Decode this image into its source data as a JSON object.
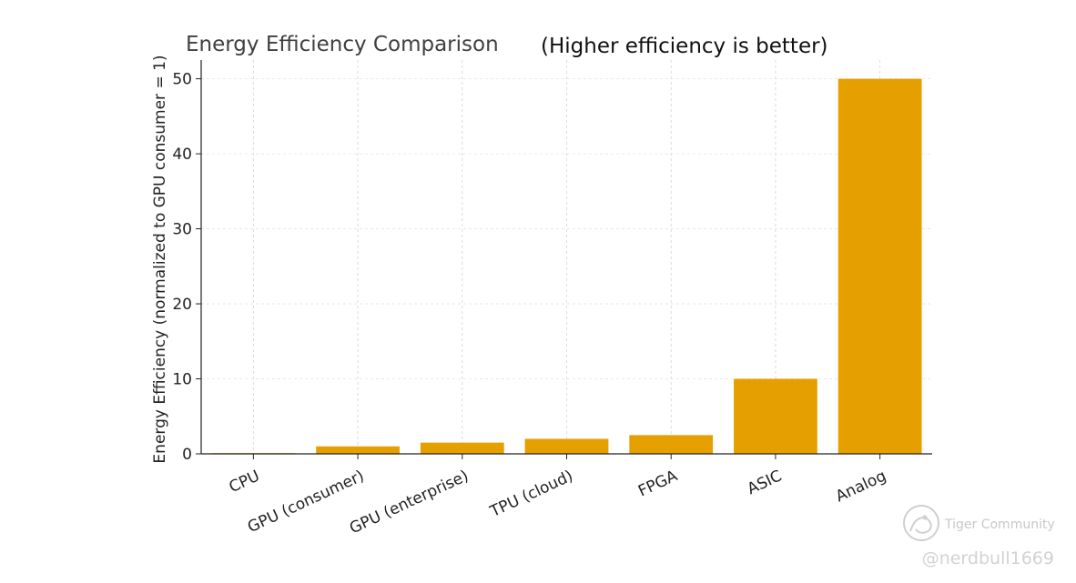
{
  "chart_data": {
    "type": "bar",
    "title": "Energy Efficiency Comparison",
    "subtitle": "(Higher efficiency is better)",
    "xlabel": "",
    "ylabel": "Energy Efficiency (normalized to GPU consumer = 1)",
    "categories": [
      "CPU",
      "GPU (consumer)",
      "GPU (enterprise)",
      "TPU (cloud)",
      "FPGA",
      "ASIC",
      "Analog"
    ],
    "values": [
      0.1,
      1,
      1.5,
      2,
      2.5,
      10,
      50
    ],
    "ylim": [
      0,
      52.5
    ],
    "yticks": [
      "0",
      "10",
      "20",
      "30",
      "40",
      "50"
    ],
    "grid": true,
    "bar_color": "#E5A000"
  },
  "watermark": {
    "brand": "Tiger Community",
    "user": "@nerdbull1669"
  }
}
